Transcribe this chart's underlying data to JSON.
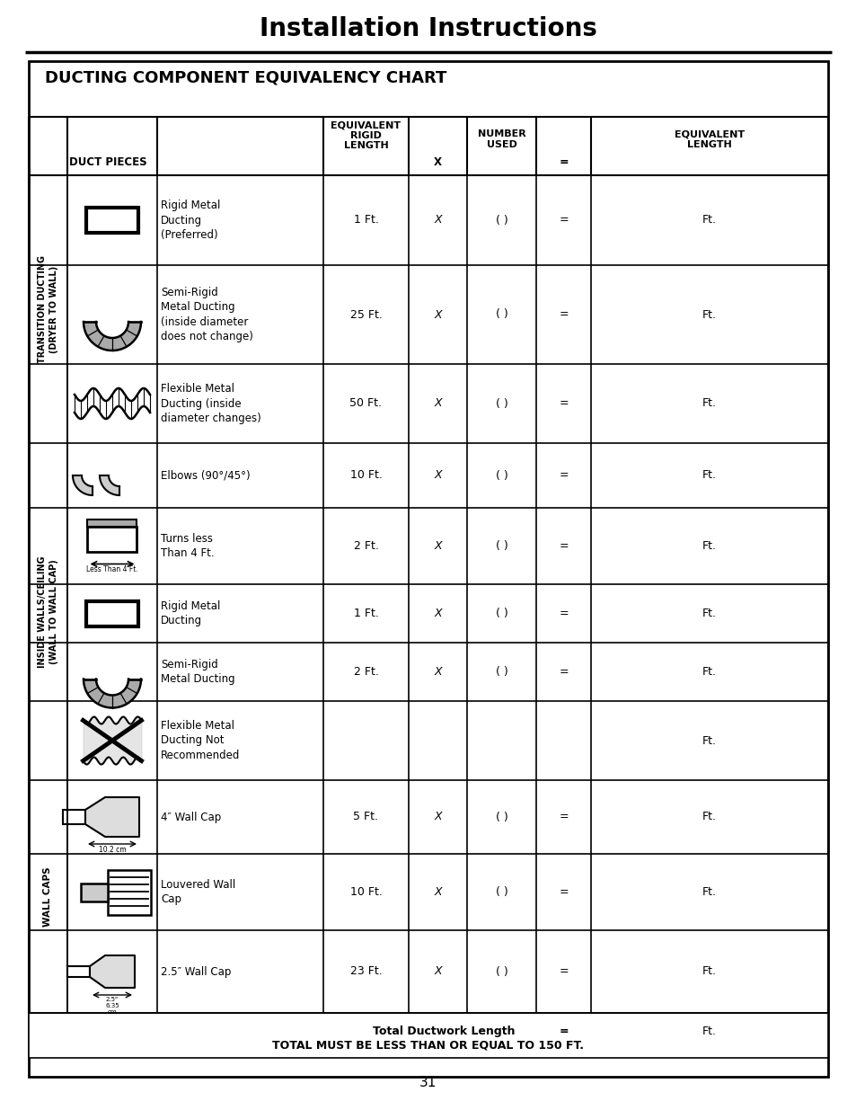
{
  "page_title": "Installation Instructions",
  "chart_title": "DUCTING COMPONENT EQUIVALENCY CHART",
  "page_number": "31",
  "rows": [
    {
      "desc": "Rigid Metal\nDucting\n(Preferred)",
      "rigid": "1 Ft.",
      "x": "X",
      "used": "( )",
      "eq": "=",
      "ft": "Ft.",
      "icon": "rect_duct",
      "section": 0
    },
    {
      "desc": "Semi-Rigid\nMetal Ducting\n(inside diameter\ndoes not change)",
      "rigid": "25 Ft.",
      "x": "X",
      "used": "( )",
      "eq": "=",
      "ft": "Ft.",
      "icon": "semi_rigid",
      "section": 0
    },
    {
      "desc": "Flexible Metal\nDucting (inside\ndiameter changes)",
      "rigid": "50 Ft.",
      "x": "X",
      "used": "( )",
      "eq": "=",
      "ft": "Ft.",
      "icon": "flex_metal",
      "section": 0
    },
    {
      "desc": "Elbows (90°/45°)",
      "rigid": "10 Ft.",
      "x": "X",
      "used": "( )",
      "eq": "=",
      "ft": "Ft.",
      "icon": "elbows",
      "section": 1
    },
    {
      "desc": "Turns less\nThan 4 Ft.",
      "rigid": "2 Ft.",
      "x": "X",
      "used": "( )",
      "eq": "=",
      "ft": "Ft.",
      "icon": "turns",
      "section": 1
    },
    {
      "desc": "Rigid Metal\nDucting",
      "rigid": "1 Ft.",
      "x": "X",
      "used": "( )",
      "eq": "=",
      "ft": "Ft.",
      "icon": "rect_duct2",
      "section": 1
    },
    {
      "desc": "Semi-Rigid\nMetal Ducting",
      "rigid": "2 Ft.",
      "x": "X",
      "used": "( )",
      "eq": "=",
      "ft": "Ft.",
      "icon": "semi_rigid2",
      "section": 1
    },
    {
      "desc": "Flexible Metal\nDucting Not\nRecommended",
      "rigid": "",
      "x": "",
      "used": "",
      "eq": "",
      "ft": "Ft.",
      "icon": "flex_x",
      "section": 1
    },
    {
      "desc": "4″ Wall Cap",
      "rigid": "5 Ft.",
      "x": "X",
      "used": "( )",
      "eq": "=",
      "ft": "Ft.",
      "icon": "wall_cap_4",
      "section": 2
    },
    {
      "desc": "Louvered Wall\nCap",
      "rigid": "10 Ft.",
      "x": "X",
      "used": "( )",
      "eq": "=",
      "ft": "Ft.",
      "icon": "louvered_cap",
      "section": 2
    },
    {
      "desc": "2.5″ Wall Cap",
      "rigid": "23 Ft.",
      "x": "X",
      "used": "( )",
      "eq": "=",
      "ft": "Ft.",
      "icon": "wall_cap_25",
      "section": 2
    }
  ],
  "sections": [
    {
      "label": "TRANSITION DUCTING\n(DRYER TO WALL)",
      "rows": [
        0,
        1,
        2
      ]
    },
    {
      "label": "INSIDE WALLS/CEILING\n(WALL TO WALL CAP)",
      "rows": [
        3,
        4,
        5,
        6,
        7
      ]
    },
    {
      "label": "WALL CAPS",
      "rows": [
        8,
        9,
        10
      ]
    }
  ]
}
